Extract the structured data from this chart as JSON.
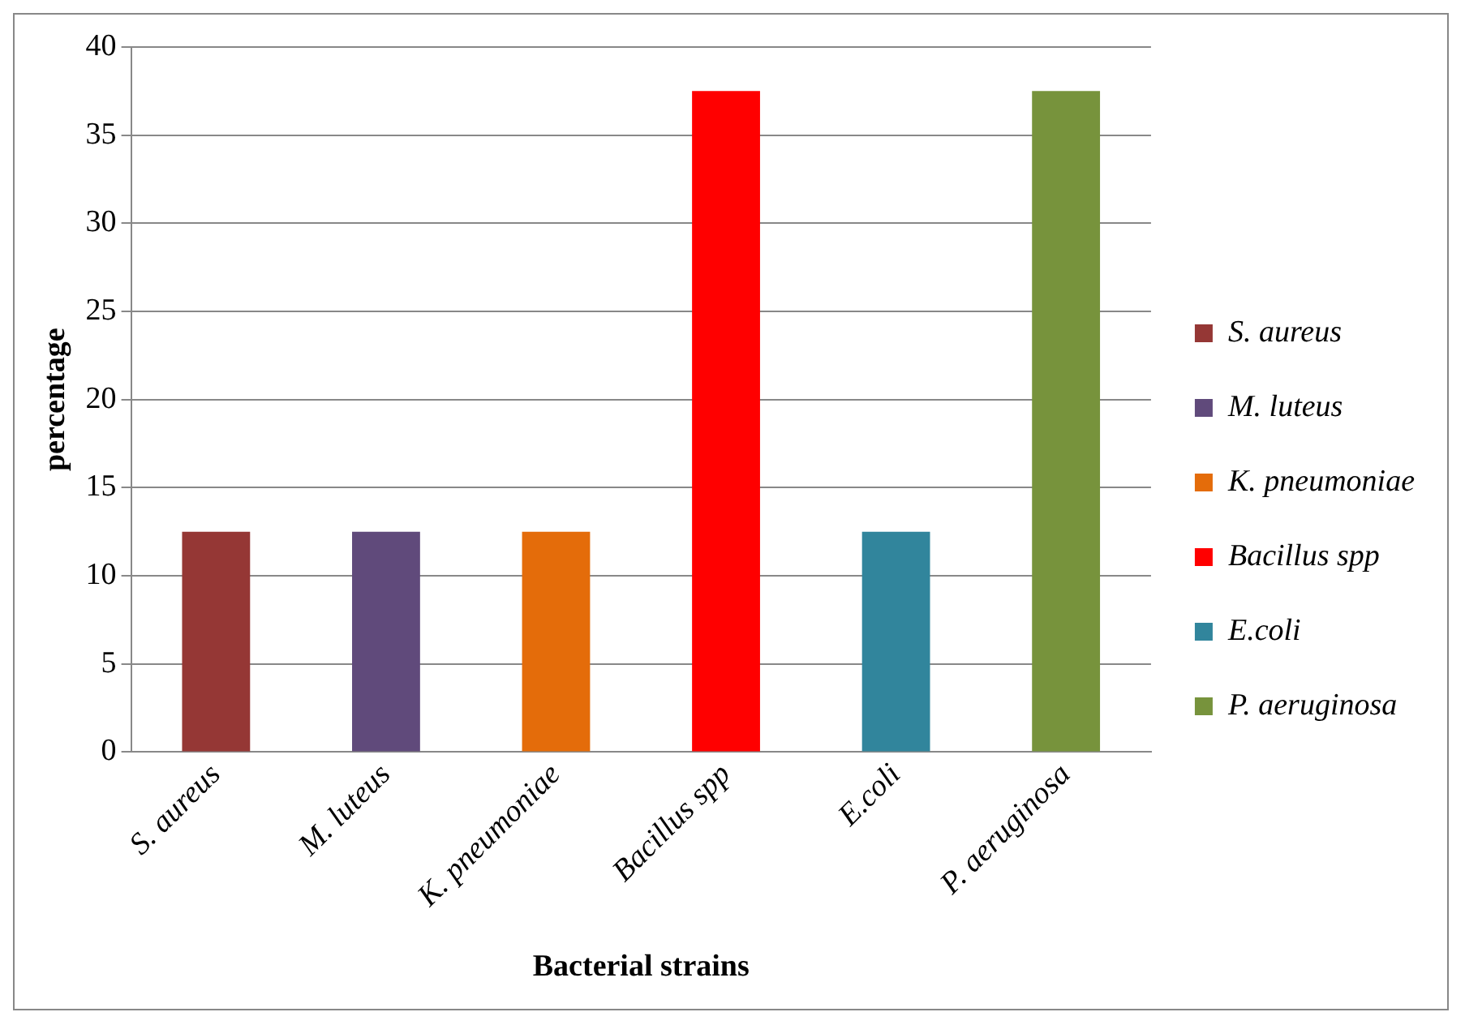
{
  "chart_data": {
    "type": "bar",
    "xlabel": "Bacterial strains",
    "ylabel": "percentage",
    "categories": [
      "S. aureus",
      "M. luteus",
      "K. pneumoniae",
      "Bacillus spp",
      "E.coli",
      "P. aeruginosa"
    ],
    "series": [
      {
        "name": "S. aureus",
        "color": "#953735",
        "values": [
          12.5,
          null,
          null,
          null,
          null,
          null
        ]
      },
      {
        "name": "M. luteus",
        "color": "#604a7b",
        "values": [
          null,
          12.5,
          null,
          null,
          null,
          null
        ]
      },
      {
        "name": "K. pneumoniae",
        "color": "#e46c0a",
        "values": [
          null,
          null,
          12.5,
          null,
          null,
          null
        ]
      },
      {
        "name": "Bacillus spp",
        "color": "#ff0000",
        "values": [
          null,
          null,
          null,
          37.5,
          null,
          null
        ]
      },
      {
        "name": "E.coli",
        "color": "#31859c",
        "values": [
          null,
          null,
          null,
          null,
          12.5,
          null
        ]
      },
      {
        "name": "P. aeruginosa",
        "color": "#77933c",
        "values": [
          null,
          null,
          null,
          null,
          null,
          37.5
        ]
      }
    ],
    "ylim": [
      0,
      40
    ],
    "yticks": [
      0,
      5,
      10,
      15,
      20,
      25,
      30,
      35,
      40
    ],
    "grid": "y",
    "legend": "right"
  }
}
